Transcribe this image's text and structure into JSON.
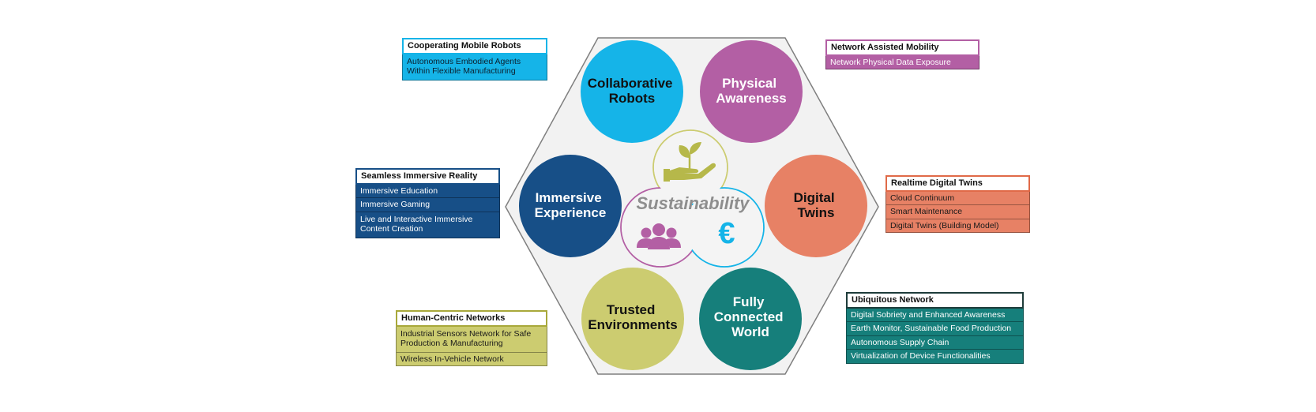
{
  "center": {
    "label": "Sustainability",
    "euro_symbol": "€"
  },
  "colors": {
    "cyan": "#15b4e8",
    "magenta": "#b35fa4",
    "navy": "#174f87",
    "coral": "#e78165",
    "olive": "#cccc70",
    "teal": "#167f7b",
    "hexagon_fill": "#f2f2f2",
    "hexagon_stroke": "#7f7f7f"
  },
  "circles": [
    {
      "id": "collab",
      "lines": [
        "Collaborative",
        "Robots"
      ],
      "icon": "none"
    },
    {
      "id": "physical",
      "lines": [
        "Physical",
        "Awareness"
      ],
      "icon": "none"
    },
    {
      "id": "immersive",
      "lines": [
        "Immersive",
        "Experience"
      ],
      "icon": "none"
    },
    {
      "id": "digital",
      "lines": [
        "Digital",
        "Twins"
      ],
      "icon": "none"
    },
    {
      "id": "trusted",
      "lines": [
        "Trusted",
        "Environments"
      ],
      "icon": "none"
    },
    {
      "id": "connected",
      "lines": [
        "Fully",
        "Connected",
        "World"
      ],
      "icon": "none"
    }
  ],
  "center_icons": [
    "plant-in-hand-icon",
    "people-group-icon",
    "euro-icon"
  ],
  "boxes": {
    "cooperating": {
      "title": "Cooperating Mobile Robots",
      "items": [
        "Autonomous Embodied Agents\nWithin Flexible Manufacturing"
      ]
    },
    "mobility": {
      "title": "Network Assisted Mobility",
      "items": [
        "Network Physical Data Exposure"
      ]
    },
    "immersive_reality": {
      "title": "Seamless Immersive Reality",
      "items": [
        "Immersive Education",
        "Immersive Gaming",
        "Live and Interactive Immersive\nContent Creation"
      ]
    },
    "realtime_twins": {
      "title": "Realtime Digital Twins",
      "items": [
        "Cloud Continuum",
        "Smart Maintenance",
        "Digital Twins (Building Model)"
      ]
    },
    "human_centric": {
      "title": "Human-Centric Networks",
      "items": [
        "Industrial Sensors Network for Safe\nProduction & Manufacturing",
        "Wireless In-Vehicle Network"
      ]
    },
    "ubiquitous": {
      "title": "Ubiquitous Network",
      "items": [
        "Digital Sobriety and Enhanced Awareness",
        "Earth Monitor, Sustainable Food Production",
        "Autonomous Supply Chain",
        "Virtualization of Device Functionalities"
      ]
    }
  }
}
